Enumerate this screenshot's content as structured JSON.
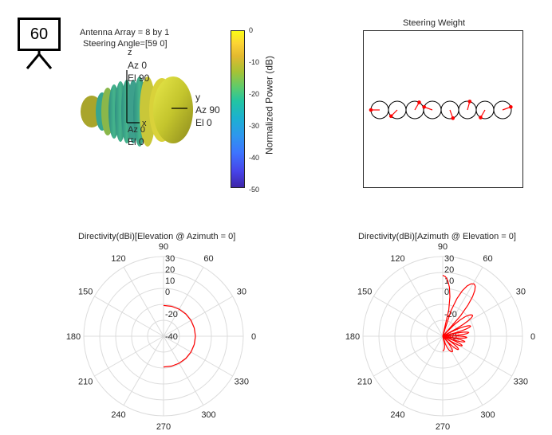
{
  "figure": {
    "frame_number": "60",
    "info_line1": "Antenna Array = 8 by 1",
    "info_line2": "Steering Angle=[59 0]"
  },
  "pattern3d": {
    "axis_z_label": "z",
    "axis_z_az": "Az 0",
    "axis_z_el": "El 90",
    "axis_y_label": "y",
    "axis_y_az": "Az 90",
    "axis_y_el": "El 0",
    "axis_x_label": "x",
    "axis_x_az": "Az 0",
    "axis_x_el": "El 0",
    "colorbar_label": "Normalized Power (dB)",
    "colorbar_ticks": [
      "0",
      "-10",
      "-20",
      "-30",
      "-40",
      "-50"
    ]
  },
  "chart_data": [
    {
      "type": "scatter",
      "title": "Steering Weight",
      "elements": 8,
      "weight_phase_deg": [
        180,
        225,
        60,
        160,
        290,
        75,
        240,
        20
      ]
    },
    {
      "type": "line",
      "polar": true,
      "title": "Directivity(dBi)[Elevation @ Azimuth = 0]",
      "angle_ticks": [
        "90",
        "60",
        "30",
        "0",
        "330",
        "300",
        "270",
        "240",
        "210",
        "180",
        "150",
        "120"
      ],
      "radial_ticks": [
        "30",
        "20",
        "10",
        "0",
        "-20",
        "-40"
      ],
      "rlim": [
        -40,
        30
      ],
      "series": [
        {
          "color": "#ff0000",
          "angle_deg": [
            -90,
            -75,
            -60,
            -45,
            -30,
            -15,
            0,
            15,
            30,
            45,
            60,
            75,
            90
          ],
          "r_dbi": [
            -13,
            -12.8,
            -12.6,
            -12.4,
            -12.2,
            -12.1,
            -12,
            -12.1,
            -12.2,
            -12.4,
            -12.6,
            -12.8,
            -13
          ]
        }
      ]
    },
    {
      "type": "line",
      "polar": true,
      "title": "Directivity(dBi)[Azimuth @ Elevation = 0]",
      "angle_ticks": [
        "90",
        "60",
        "30",
        "0",
        "330",
        "300",
        "270",
        "240",
        "210",
        "180",
        "150",
        "120"
      ],
      "radial_ticks": [
        "30",
        "20",
        "10",
        "0",
        "-20",
        "-40"
      ],
      "rlim": [
        -40,
        30
      ],
      "series": [
        {
          "color": "#ff0000",
          "description": "main lobe near 59 deg with decreasing side lobes toward -90 deg",
          "lobe_peaks_deg": [
            90,
            59,
            35,
            20,
            8,
            -3,
            -14,
            -26,
            -40,
            -58,
            -90
          ],
          "lobe_peaks_dbi": [
            13.5,
            13.5,
            -8,
            -14,
            -17,
            -19,
            -20,
            -21,
            -22,
            -24,
            -27
          ]
        }
      ]
    }
  ]
}
